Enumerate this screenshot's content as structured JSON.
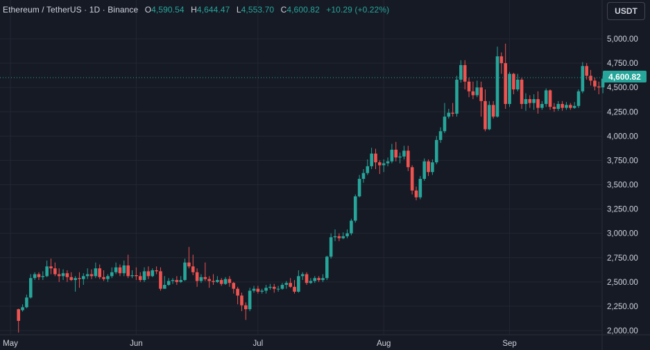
{
  "legend": {
    "symbol": "Ethereum / TetherUS · 1D · Binance",
    "open_label": "O",
    "open": "4,590.54",
    "high_label": "H",
    "high": "4,644.47",
    "low_label": "L",
    "low": "4,553.70",
    "close_label": "C",
    "close": "4,600.82",
    "change": "+10.29 (+0.22%)"
  },
  "currency_button": "USDT",
  "last_price_label": "4,600.82",
  "colors": {
    "background": "#161a25",
    "grid": "#232732",
    "up": "#26a69a",
    "down": "#ef5350",
    "text": "#d1d4dc",
    "price_line": "#26a69a"
  },
  "chart_data": {
    "type": "candlestick",
    "y_axis": {
      "range": [
        1980,
        5190
      ],
      "ticks": [
        2000,
        2250,
        2500,
        2750,
        3000,
        3250,
        3500,
        3750,
        4000,
        4250,
        4500,
        4750,
        5000
      ],
      "tick_labels": [
        "2,000.00",
        "2,250.00",
        "2,500.00",
        "2,750.00",
        "3,000.00",
        "3,250.00",
        "3,500.00",
        "3,750.00",
        "4,000.00",
        "4,250.00",
        "4,500.00",
        "4,750.00",
        "5,000.00"
      ]
    },
    "x_axis": {
      "labels": [
        {
          "text": "May",
          "day": 0
        },
        {
          "text": "Jun",
          "day": 31
        },
        {
          "text": "Jul",
          "day": 61
        },
        {
          "text": "Aug",
          "day": 92
        },
        {
          "text": "Sep",
          "day": 123
        }
      ]
    },
    "last_price": 4600.82,
    "grid": true,
    "candles": [
      [
        2,
        2220,
        2100,
        2225,
        1980
      ],
      [
        3,
        2210,
        2240,
        2270,
        2195
      ],
      [
        4,
        2240,
        2340,
        2370,
        2230
      ],
      [
        5,
        2340,
        2540,
        2580,
        2330
      ],
      [
        6,
        2540,
        2580,
        2600,
        2520
      ],
      [
        7,
        2580,
        2550,
        2600,
        2520
      ],
      [
        8,
        2550,
        2560,
        2610,
        2520
      ],
      [
        9,
        2560,
        2660,
        2720,
        2550
      ],
      [
        10,
        2660,
        2640,
        2740,
        2580
      ],
      [
        11,
        2640,
        2580,
        2700,
        2560
      ],
      [
        12,
        2580,
        2560,
        2640,
        2500
      ],
      [
        13,
        2560,
        2590,
        2630,
        2520
      ],
      [
        14,
        2590,
        2550,
        2620,
        2500
      ],
      [
        15,
        2550,
        2520,
        2600,
        2510
      ],
      [
        16,
        2520,
        2540,
        2560,
        2400
      ],
      [
        17,
        2540,
        2530,
        2600,
        2440
      ],
      [
        18,
        2530,
        2560,
        2590,
        2470
      ],
      [
        19,
        2560,
        2580,
        2640,
        2530
      ],
      [
        20,
        2580,
        2560,
        2630,
        2530
      ],
      [
        21,
        2560,
        2640,
        2700,
        2540
      ],
      [
        22,
        2640,
        2550,
        2680,
        2530
      ],
      [
        23,
        2550,
        2530,
        2620,
        2510
      ],
      [
        24,
        2530,
        2560,
        2580,
        2500
      ],
      [
        25,
        2560,
        2600,
        2650,
        2540
      ],
      [
        26,
        2600,
        2650,
        2700,
        2580
      ],
      [
        27,
        2650,
        2590,
        2680,
        2560
      ],
      [
        28,
        2590,
        2670,
        2720,
        2560
      ],
      [
        29,
        2670,
        2560,
        2780,
        2540
      ],
      [
        30,
        2560,
        2570,
        2620,
        2540
      ],
      [
        31,
        2570,
        2560,
        2650,
        2520
      ],
      [
        32,
        2560,
        2520,
        2600,
        2500
      ],
      [
        33,
        2520,
        2610,
        2650,
        2500
      ],
      [
        34,
        2610,
        2560,
        2660,
        2530
      ],
      [
        35,
        2560,
        2620,
        2640,
        2550
      ],
      [
        36,
        2620,
        2610,
        2660,
        2580
      ],
      [
        37,
        2610,
        2430,
        2650,
        2410
      ],
      [
        38,
        2430,
        2470,
        2560,
        2430
      ],
      [
        39,
        2470,
        2510,
        2540,
        2460
      ],
      [
        40,
        2510,
        2520,
        2540,
        2480
      ],
      [
        41,
        2520,
        2500,
        2560,
        2470
      ],
      [
        42,
        2500,
        2520,
        2560,
        2490
      ],
      [
        43,
        2520,
        2700,
        2740,
        2510
      ],
      [
        44,
        2700,
        2660,
        2860,
        2640
      ],
      [
        45,
        2660,
        2600,
        2780,
        2570
      ],
      [
        46,
        2600,
        2510,
        2640,
        2450
      ],
      [
        47,
        2510,
        2550,
        2580,
        2490
      ],
      [
        48,
        2550,
        2530,
        2700,
        2510
      ],
      [
        49,
        2530,
        2510,
        2560,
        2440
      ],
      [
        50,
        2510,
        2500,
        2580,
        2470
      ],
      [
        51,
        2500,
        2520,
        2560,
        2490
      ],
      [
        52,
        2520,
        2480,
        2540,
        2460
      ],
      [
        53,
        2480,
        2530,
        2550,
        2470
      ],
      [
        54,
        2530,
        2490,
        2560,
        2450
      ],
      [
        55,
        2490,
        2430,
        2500,
        2380
      ],
      [
        56,
        2430,
        2360,
        2450,
        2270
      ],
      [
        57,
        2360,
        2260,
        2390,
        2200
      ],
      [
        58,
        2260,
        2220,
        2290,
        2110
      ],
      [
        59,
        2220,
        2410,
        2440,
        2200
      ],
      [
        60,
        2410,
        2430,
        2460,
        2390
      ],
      [
        61,
        2430,
        2400,
        2460,
        2380
      ],
      [
        62,
        2400,
        2410,
        2430,
        2380
      ],
      [
        63,
        2410,
        2440,
        2470,
        2380
      ],
      [
        64,
        2440,
        2450,
        2480,
        2420
      ],
      [
        65,
        2450,
        2430,
        2480,
        2390
      ],
      [
        66,
        2430,
        2430,
        2460,
        2400
      ],
      [
        67,
        2430,
        2470,
        2490,
        2420
      ],
      [
        68,
        2470,
        2490,
        2510,
        2430
      ],
      [
        69,
        2490,
        2450,
        2540,
        2440
      ],
      [
        70,
        2450,
        2400,
        2520,
        2380
      ],
      [
        71,
        2400,
        2560,
        2620,
        2390
      ],
      [
        72,
        2560,
        2580,
        2600,
        2520
      ],
      [
        73,
        2580,
        2490,
        2600,
        2470
      ],
      [
        74,
        2490,
        2510,
        2540,
        2480
      ],
      [
        75,
        2510,
        2540,
        2560,
        2490
      ],
      [
        76,
        2540,
        2520,
        2560,
        2500
      ],
      [
        77,
        2520,
        2540,
        2580,
        2500
      ],
      [
        78,
        2540,
        2760,
        2770,
        2520
      ],
      [
        79,
        2760,
        2960,
        3000,
        2740
      ],
      [
        80,
        2960,
        2970,
        3040,
        2920
      ],
      [
        81,
        2970,
        2950,
        3000,
        2920
      ],
      [
        82,
        2950,
        2970,
        3010,
        2940
      ],
      [
        83,
        2970,
        3000,
        3040,
        2950
      ],
      [
        84,
        3000,
        3130,
        3150,
        2980
      ],
      [
        85,
        3130,
        3380,
        3400,
        3110
      ],
      [
        86,
        3380,
        3560,
        3600,
        3370
      ],
      [
        87,
        3560,
        3620,
        3660,
        3520
      ],
      [
        88,
        3620,
        3690,
        3760,
        3600
      ],
      [
        89,
        3690,
        3820,
        3880,
        3660
      ],
      [
        90,
        3820,
        3730,
        3870,
        3660
      ],
      [
        91,
        3730,
        3700,
        3750,
        3610
      ],
      [
        92,
        3700,
        3720,
        3760,
        3630
      ],
      [
        93,
        3720,
        3740,
        3780,
        3690
      ],
      [
        94,
        3740,
        3860,
        3920,
        3720
      ],
      [
        95,
        3860,
        3780,
        3940,
        3740
      ],
      [
        96,
        3780,
        3790,
        3830,
        3720
      ],
      [
        97,
        3790,
        3850,
        3900,
        3760
      ],
      [
        98,
        3850,
        3680,
        3900,
        3640
      ],
      [
        99,
        3680,
        3440,
        3700,
        3400
      ],
      [
        100,
        3440,
        3370,
        3480,
        3340
      ],
      [
        101,
        3370,
        3560,
        3590,
        3350
      ],
      [
        102,
        3560,
        3740,
        3770,
        3540
      ],
      [
        103,
        3740,
        3630,
        3760,
        3590
      ],
      [
        104,
        3630,
        3730,
        3760,
        3600
      ],
      [
        105,
        3730,
        3960,
        4000,
        3710
      ],
      [
        106,
        3960,
        4050,
        4090,
        3930
      ],
      [
        107,
        4050,
        4200,
        4340,
        4030
      ],
      [
        108,
        4200,
        4240,
        4280,
        4180
      ],
      [
        109,
        4240,
        4230,
        4340,
        4200
      ],
      [
        110,
        4230,
        4580,
        4620,
        4200
      ],
      [
        111,
        4580,
        4730,
        4780,
        4550
      ],
      [
        112,
        4730,
        4560,
        4780,
        4480
      ],
      [
        113,
        4560,
        4460,
        4600,
        4400
      ],
      [
        114,
        4460,
        4420,
        4560,
        4380
      ],
      [
        115,
        4420,
        4500,
        4570,
        4400
      ],
      [
        116,
        4500,
        4360,
        4560,
        4200
      ],
      [
        117,
        4360,
        4070,
        4480,
        4050
      ],
      [
        118,
        4070,
        4320,
        4360,
        4060
      ],
      [
        119,
        4320,
        4200,
        4360,
        4180
      ],
      [
        120,
        4200,
        4820,
        4920,
        4190
      ],
      [
        121,
        4820,
        4750,
        4860,
        4640
      ],
      [
        122,
        4750,
        4330,
        4950,
        4280
      ],
      [
        123,
        4330,
        4640,
        4660,
        4300
      ],
      [
        124,
        4640,
        4480,
        4650,
        4430
      ],
      [
        125,
        4480,
        4580,
        4640,
        4460
      ],
      [
        126,
        4580,
        4330,
        4600,
        4280
      ],
      [
        127,
        4330,
        4380,
        4440,
        4260
      ],
      [
        128,
        4380,
        4340,
        4420,
        4290
      ],
      [
        129,
        4340,
        4380,
        4430,
        4270
      ],
      [
        130,
        4380,
        4290,
        4460,
        4230
      ],
      [
        131,
        4290,
        4330,
        4360,
        4270
      ],
      [
        132,
        4330,
        4470,
        4490,
        4300
      ],
      [
        133,
        4470,
        4300,
        4480,
        4270
      ],
      [
        134,
        4300,
        4280,
        4340,
        4250
      ],
      [
        135,
        4280,
        4330,
        4360,
        4260
      ],
      [
        136,
        4330,
        4290,
        4360,
        4260
      ],
      [
        137,
        4290,
        4320,
        4350,
        4270
      ],
      [
        138,
        4320,
        4290,
        4340,
        4270
      ],
      [
        139,
        4290,
        4310,
        4350,
        4280
      ],
      [
        140,
        4310,
        4460,
        4480,
        4290
      ],
      [
        141,
        4460,
        4720,
        4760,
        4440
      ],
      [
        142,
        4720,
        4620,
        4750,
        4580
      ],
      [
        143,
        4620,
        4570,
        4680,
        4520
      ],
      [
        144,
        4570,
        4510,
        4600,
        4470
      ],
      [
        145,
        4510,
        4500,
        4560,
        4430
      ],
      [
        146,
        4500,
        4590,
        4620,
        4440
      ],
      [
        147,
        4590,
        4600,
        4640,
        4550
      ]
    ]
  }
}
